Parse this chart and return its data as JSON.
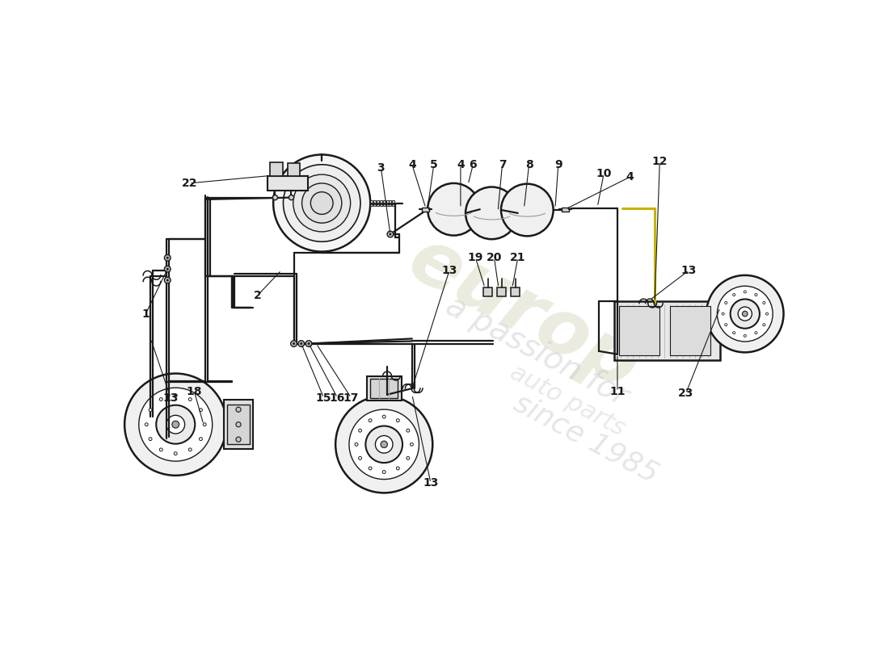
{
  "bg_color": "#ffffff",
  "lc": "#1a1a1a",
  "gray1": "#f0f0f0",
  "gray2": "#e0e0e0",
  "gray3": "#cccccc",
  "gray4": "#aaaaaa",
  "yellow": "#c8b400",
  "wm_color": "#d0d0b0",
  "wm_color2": "#c8c8c8",
  "figw": 11.0,
  "figh": 8.0,
  "dpi": 100,
  "xlim": [
    0,
    1100
  ],
  "ylim": [
    0,
    800
  ]
}
